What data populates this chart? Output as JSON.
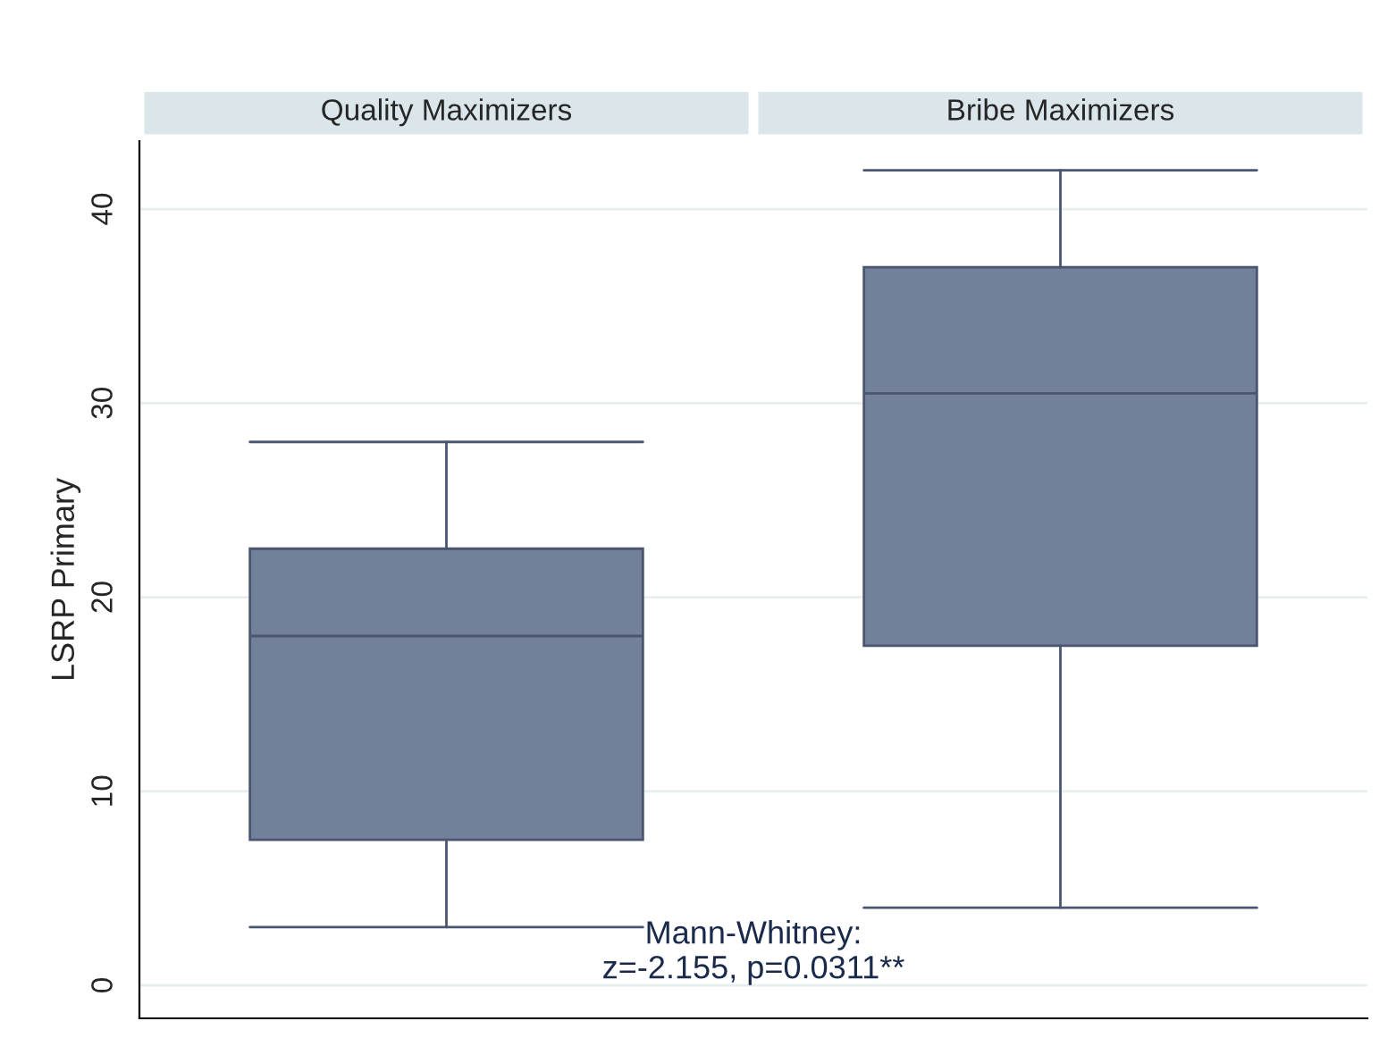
{
  "chart_data": {
    "type": "box",
    "ylabel": "LSRP Primary",
    "categories": [
      "Quality Maximizers",
      "Bribe Maximizers"
    ],
    "boxes": [
      {
        "low": 3,
        "q1": 7.5,
        "median": 18,
        "q3": 22.5,
        "high": 28
      },
      {
        "low": 4,
        "q1": 17.5,
        "median": 30.5,
        "q3": 37,
        "high": 42
      }
    ],
    "color": "#72809a",
    "ylim": [
      -1.7,
      43.5
    ],
    "yticks": [
      0,
      10,
      20,
      30,
      40
    ],
    "grid": "y",
    "annotations": [
      "Mann-Whitney:\nz=-2.155, p=0.0311**"
    ]
  }
}
